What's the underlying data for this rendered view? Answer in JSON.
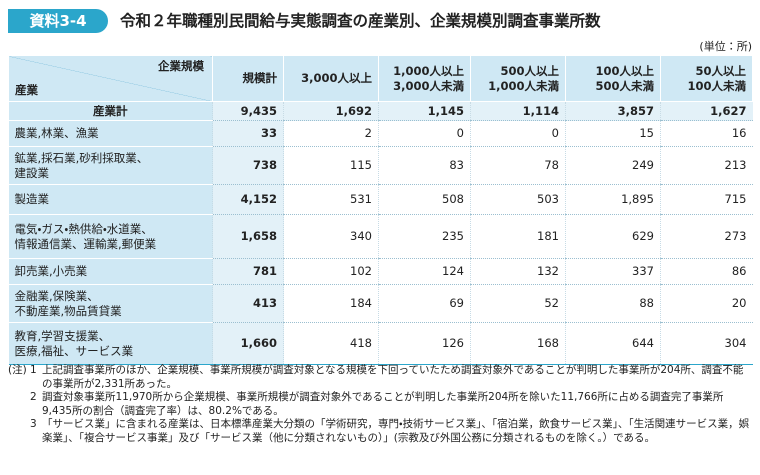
{
  "header": {
    "badge": "資料3-4",
    "title": "令和２年職種別民間給与実態調査の産業別、企業規模別調査事業所数",
    "unit": "(単位：所)"
  },
  "table": {
    "corner": {
      "top": "企業規模",
      "bottom": "産業"
    },
    "columns": [
      "規模計",
      "3,000人以上",
      "1,000人以上\n3,000人未満",
      "500人以上\n1,000人未満",
      "100人以上\n500人未満",
      "50人以上\n100人未満"
    ],
    "rows": [
      {
        "label": "産業計",
        "values": [
          "9,435",
          "1,692",
          "1,145",
          "1,114",
          "3,857",
          "1,627"
        ]
      },
      {
        "label": "農業,林業、漁業",
        "values": [
          "33",
          "2",
          "0",
          "0",
          "15",
          "16"
        ]
      },
      {
        "label": "鉱業,採石業,砂利採取業、\n建設業",
        "values": [
          "738",
          "115",
          "83",
          "78",
          "249",
          "213"
        ]
      },
      {
        "label": "製造業",
        "values": [
          "4,152",
          "531",
          "508",
          "503",
          "1,895",
          "715"
        ]
      },
      {
        "label": "電気・ガス・熱供給・水道業、\n情報通信業、運輸業,郵便業",
        "values": [
          "1,658",
          "340",
          "235",
          "181",
          "629",
          "273"
        ]
      },
      {
        "label": "卸売業,小売業",
        "values": [
          "781",
          "102",
          "124",
          "132",
          "337",
          "86"
        ]
      },
      {
        "label": "金融業,保険業、\n不動産業,物品賃貸業",
        "values": [
          "413",
          "184",
          "69",
          "52",
          "88",
          "20"
        ]
      },
      {
        "label": "教育,学習支援業、\n医療,福祉、サービス業",
        "values": [
          "1,660",
          "418",
          "126",
          "168",
          "644",
          "304"
        ]
      }
    ]
  },
  "notes": {
    "label": "(注)",
    "items": [
      {
        "number": "1",
        "text": "上記調査事業所のほか、企業規模、事業所規模が調査対象となる規模を下回っていたため調査対象外であることが判明した事業所が204所、調査不能の事業所が2,331所あった。"
      },
      {
        "number": "2",
        "text": "調査対象事業所11,970所から企業規模、事業所規模が調査対象外であることが判明した事業所204所を除いた11,766所に占める調査完了事業所9,435所の割合（調査完了率）は、80.2%である。"
      },
      {
        "number": "3",
        "text": "「サービス業」に含まれる産業は、日本標準産業大分類の「学術研究，専門・技術サービス業」、「宿泊業，飲食サービス業」、「生活関連サービス業，娯楽業」、「複合サービス事業」及び「サービス業（他に分類されないもの）」(宗教及び外国公務に分類されるものを除く。）である。"
      }
    ]
  }
}
